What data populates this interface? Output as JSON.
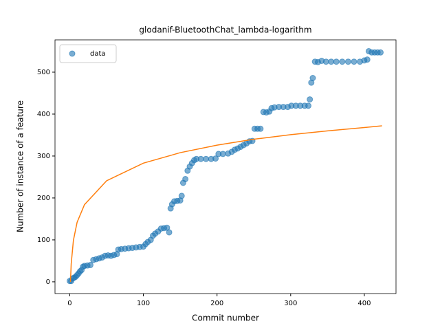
{
  "chart_data": {
    "type": "scatter",
    "title": "glodanif-BluetoothChat_lambda-logarithm",
    "xlabel": "Commit number",
    "ylabel": "Number of instance of a feature",
    "xlim": [
      -20,
      443
    ],
    "ylim": [
      -28,
      577
    ],
    "xticks": [
      0,
      100,
      200,
      300,
      400
    ],
    "yticks": [
      0,
      100,
      200,
      300,
      400,
      500
    ],
    "legend": "upper left",
    "series": [
      {
        "name": "data",
        "type": "scatter",
        "color": "#1f77b4",
        "x": [
          0,
          2,
          4,
          6,
          8,
          10,
          12,
          14,
          16,
          18,
          20,
          24,
          28,
          32,
          36,
          40,
          44,
          48,
          52,
          56,
          60,
          64,
          66,
          70,
          75,
          80,
          85,
          90,
          95,
          100,
          103,
          106,
          110,
          113,
          116,
          120,
          124,
          128,
          132,
          135,
          137,
          139,
          142,
          146,
          150,
          152,
          154,
          157,
          160,
          163,
          166,
          169,
          172,
          178,
          185,
          192,
          198,
          202,
          208,
          215,
          220,
          224,
          228,
          232,
          236,
          240,
          244,
          248,
          251,
          255,
          259,
          263,
          267,
          271,
          274,
          278,
          284,
          290,
          296,
          301,
          307,
          313,
          319,
          324,
          326,
          328,
          330,
          333,
          337,
          342,
          348,
          355,
          362,
          370,
          378,
          386,
          394,
          400,
          404,
          406,
          410,
          414,
          418,
          422
        ],
        "values": [
          2,
          2,
          8,
          10,
          12,
          16,
          20,
          25,
          28,
          36,
          38,
          39,
          40,
          52,
          54,
          56,
          58,
          62,
          63,
          62,
          64,
          66,
          77,
          78,
          79,
          80,
          81,
          82,
          83,
          84,
          90,
          95,
          100,
          110,
          115,
          120,
          127,
          128,
          129,
          118,
          175,
          185,
          192,
          193,
          194,
          205,
          236,
          245,
          265,
          275,
          283,
          290,
          293,
          293,
          293,
          293,
          294,
          305,
          305,
          306,
          310,
          315,
          318,
          322,
          326,
          330,
          335,
          336,
          365,
          365,
          365,
          405,
          404,
          406,
          414,
          416,
          417,
          417,
          417,
          420,
          420,
          420,
          420,
          420,
          435,
          475,
          486,
          525,
          524,
          527,
          525,
          525,
          525,
          525,
          525,
          525,
          525,
          528,
          530,
          550,
          547,
          547,
          547,
          547
        ]
      },
      {
        "type": "line",
        "color": "#ff7f0e",
        "x": [
          1,
          2,
          5,
          10,
          20,
          50,
          100,
          150,
          200,
          250,
          300,
          350,
          400,
          424
        ],
        "values": [
          0,
          43,
          99,
          142,
          184,
          241,
          283,
          308,
          326,
          340,
          351,
          360,
          368,
          372
        ]
      }
    ]
  }
}
